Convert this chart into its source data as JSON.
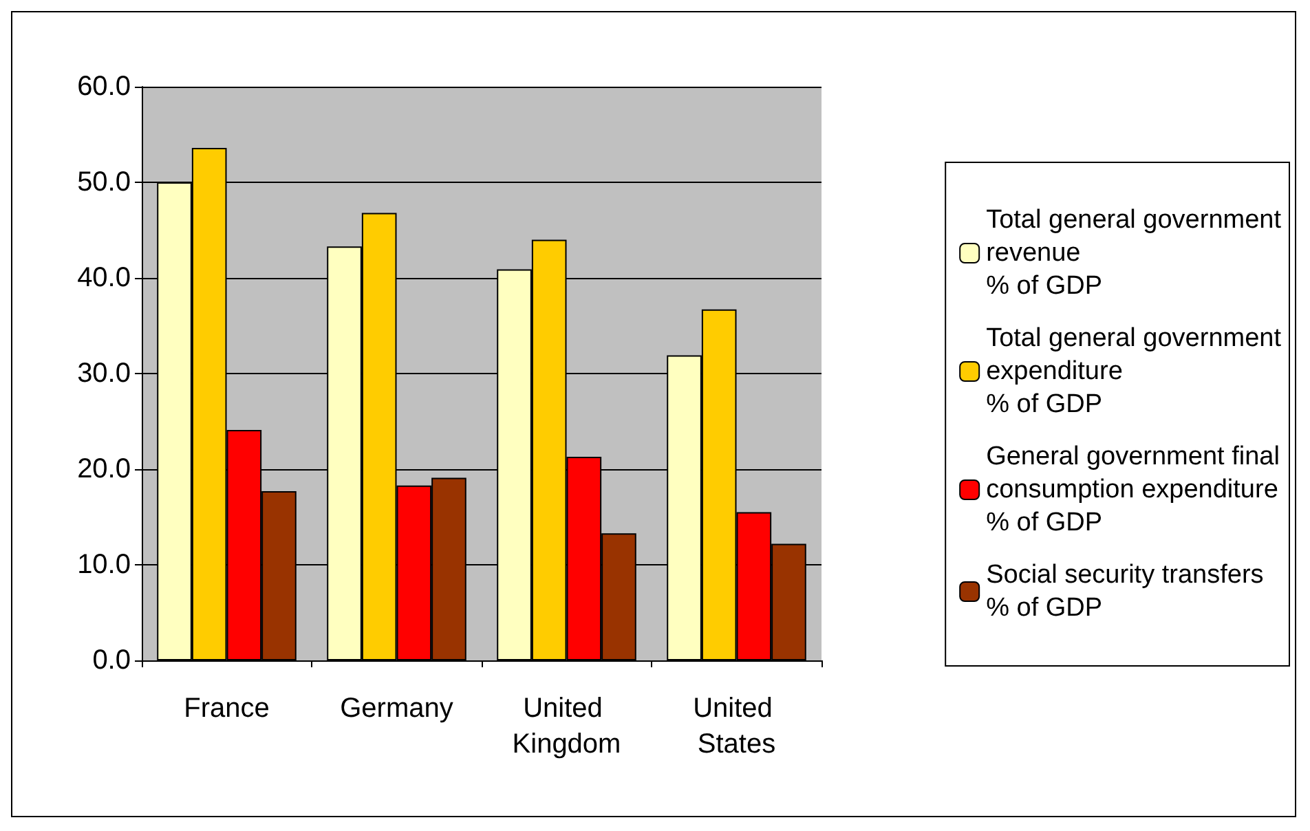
{
  "chart_data": {
    "type": "bar",
    "categories": [
      "France",
      "Germany",
      "United Kingdom",
      "United States"
    ],
    "series": [
      {
        "name": "Total general government\nrevenue\n% of GDP",
        "color": "#ffffc0",
        "values": [
          50.0,
          43.3,
          40.9,
          31.9
        ]
      },
      {
        "name": "Total general government\nexpenditure\n% of GDP",
        "color": "#ffcc00",
        "values": [
          53.6,
          46.8,
          44.0,
          36.7
        ]
      },
      {
        "name": "General government final\nconsumption expenditure\n% of GDP",
        "color": "#ff0000",
        "values": [
          24.1,
          18.3,
          21.3,
          15.5
        ]
      },
      {
        "name": "Social security transfers\n% of GDP",
        "color": "#993300",
        "values": [
          17.7,
          19.1,
          13.3,
          12.2
        ]
      }
    ],
    "ylim": [
      0,
      60
    ],
    "yticks": [
      {
        "value": 0,
        "label": "0.0"
      },
      {
        "value": 10,
        "label": "10.0"
      },
      {
        "value": 20,
        "label": "20.0"
      },
      {
        "value": 30,
        "label": "30.0"
      },
      {
        "value": 40,
        "label": "40.0"
      },
      {
        "value": 50,
        "label": "50.0"
      },
      {
        "value": 60,
        "label": "60.0"
      }
    ],
    "grid": "y",
    "legend": "right"
  }
}
